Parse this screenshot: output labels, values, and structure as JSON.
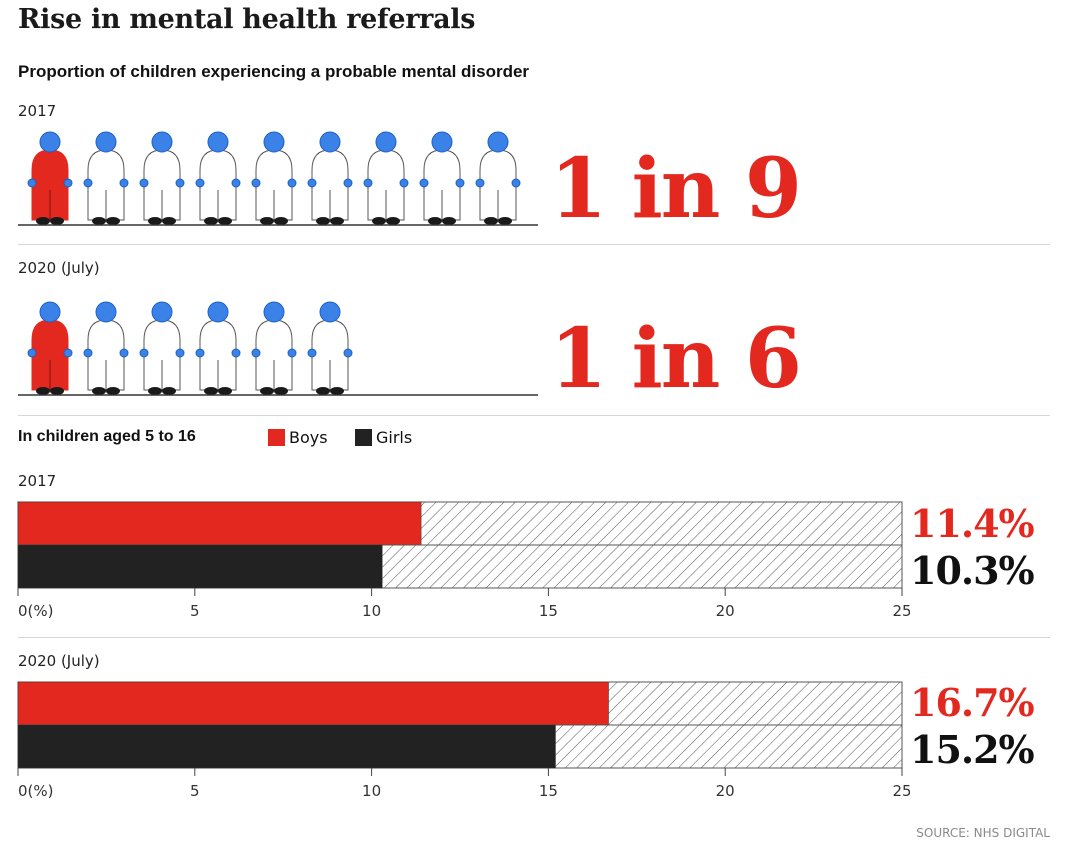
{
  "title": "Rise in mental health referrals",
  "subtitle": "Proportion of children experiencing a probable mental disorder",
  "pictograms": [
    {
      "year": "2017",
      "ratio_text": "1 in 9",
      "total": 9,
      "highlighted": 1
    },
    {
      "year": "2020 (July)",
      "ratio_text": "1 in 6",
      "total": 6,
      "highlighted": 1
    }
  ],
  "legend": {
    "title": "In children aged 5 to 16",
    "items": [
      {
        "label": "Boys",
        "color": "#e2281f"
      },
      {
        "label": "Girls",
        "color": "#222222"
      }
    ]
  },
  "colors": {
    "boys": "#e2281f",
    "girls": "#222222",
    "figure_head": "#3b82e8",
    "figure_outline": "#555555"
  },
  "chart_data": [
    {
      "type": "bar",
      "orientation": "horizontal",
      "title": "2017",
      "categories": [
        "Boys",
        "Girls"
      ],
      "values": [
        11.4,
        10.3
      ],
      "value_labels": [
        "11.4%",
        "10.3%"
      ],
      "xlim": [
        0,
        25
      ],
      "xticks": [
        0,
        5,
        10,
        15,
        20,
        25
      ],
      "xtick_labels": [
        "0(%)",
        "5",
        "10",
        "15",
        "20",
        "25"
      ]
    },
    {
      "type": "bar",
      "orientation": "horizontal",
      "title": "2020 (July)",
      "categories": [
        "Boys",
        "Girls"
      ],
      "values": [
        16.7,
        15.2
      ],
      "value_labels": [
        "16.7%",
        "15.2%"
      ],
      "xlim": [
        0,
        25
      ],
      "xticks": [
        0,
        5,
        10,
        15,
        20,
        25
      ],
      "xtick_labels": [
        "0(%)",
        "5",
        "10",
        "15",
        "20",
        "25"
      ]
    }
  ],
  "source": "SOURCE: NHS DIGITAL"
}
